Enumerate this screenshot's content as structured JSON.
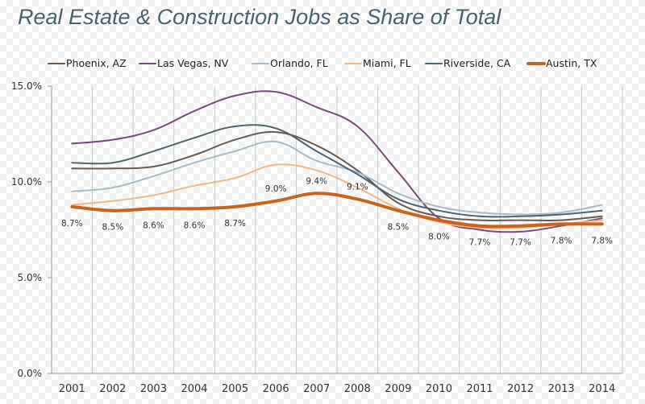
{
  "title": "Real Estate & Construction Jobs as Share of Total",
  "chart_data": {
    "type": "line",
    "title": "Real Estate & Construction Jobs as Share of Total",
    "xlabel": "",
    "ylabel": "",
    "x": [
      "2001",
      "2002",
      "2003",
      "2004",
      "2005",
      "2006",
      "2007",
      "2008",
      "2009",
      "2010",
      "2011",
      "2012",
      "2013",
      "2014"
    ],
    "ylim": [
      0,
      15
    ],
    "yticks": [
      0,
      5,
      10,
      15
    ],
    "ytick_labels": [
      "0.0%",
      "5.0%",
      "10.0%",
      "15.0%"
    ],
    "grid": "vertical-lines",
    "legend": "top",
    "series": [
      {
        "name": "Phoenix, AZ",
        "color": "#6b5a4e",
        "values": [
          10.7,
          10.7,
          10.8,
          11.4,
          12.2,
          12.6,
          11.9,
          10.6,
          8.9,
          8.2,
          8.0,
          8.0,
          8.0,
          8.2
        ]
      },
      {
        "name": "Las Vegas, NV",
        "color": "#7b4a7a",
        "values": [
          12.0,
          12.2,
          12.7,
          13.7,
          14.5,
          14.7,
          13.9,
          12.9,
          10.5,
          8.1,
          7.5,
          7.4,
          7.7,
          8.1
        ]
      },
      {
        "name": "Orlando, FL",
        "color": "#a7bcc8",
        "values": [
          9.5,
          9.7,
          10.3,
          11.0,
          11.6,
          12.1,
          11.1,
          10.5,
          9.4,
          8.7,
          8.4,
          8.3,
          8.4,
          8.8
        ]
      },
      {
        "name": "Miami, FL",
        "color": "#eeb989",
        "values": [
          8.8,
          9.0,
          9.3,
          9.8,
          10.2,
          10.9,
          10.6,
          9.7,
          8.6,
          7.9,
          7.6,
          7.6,
          7.8,
          8.0
        ]
      },
      {
        "name": "Riverside, CA",
        "color": "#4e6470",
        "values": [
          11.0,
          11.0,
          11.6,
          12.3,
          12.9,
          12.8,
          11.6,
          10.4,
          9.1,
          8.5,
          8.2,
          8.2,
          8.3,
          8.5
        ]
      },
      {
        "name": "Austin, TX",
        "color": "#c8641e",
        "highlight": true,
        "values": [
          8.7,
          8.5,
          8.6,
          8.6,
          8.7,
          9.0,
          9.4,
          9.1,
          8.5,
          8.0,
          7.7,
          7.7,
          7.8,
          7.8
        ]
      }
    ],
    "data_labels": [
      "8.7%",
      "8.5%",
      "8.6%",
      "8.6%",
      "8.7%",
      "9.0%",
      "9.4%",
      "9.1%",
      "8.5%",
      "8.0%",
      "7.7%",
      "7.7%",
      "7.8%",
      "7.8%"
    ]
  }
}
